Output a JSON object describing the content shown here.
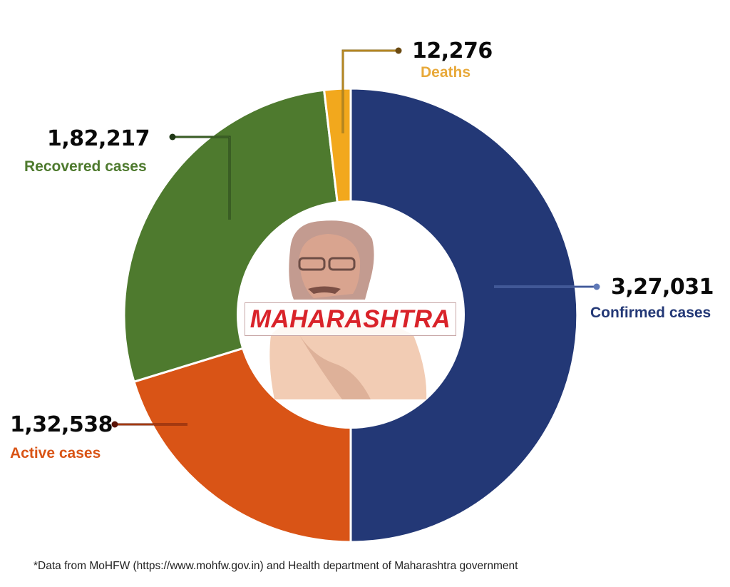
{
  "chart_data": {
    "type": "pie",
    "subtype": "donut",
    "title": "MAHARASHTRA",
    "categories": [
      "Confirmed cases",
      "Active cases",
      "Recovered cases",
      "Deaths"
    ],
    "values": [
      327031,
      132538,
      182217,
      12276
    ],
    "display_values": [
      "3,27,031",
      "1,32,538",
      "1,82,217",
      "12,276"
    ],
    "colors": [
      "#233876",
      "#d95416",
      "#4e7a2e",
      "#f2a81d"
    ],
    "label_colors": [
      "#233876",
      "#d95416",
      "#4e7a2e",
      "#e8a93a"
    ],
    "legend_position": "callouts",
    "footnote": "*Data from MoHFW (https://www.mohfw.gov.in) and Health department of Maharashtra government"
  },
  "center": {
    "title": "MAHARASHTRA",
    "image": "portrait-illustration"
  },
  "callouts": {
    "confirmed": {
      "value": "3,27,031",
      "label": "Confirmed cases"
    },
    "active": {
      "value": "1,32,538",
      "label": "Active cases"
    },
    "recovered": {
      "value": "1,82,217",
      "label": "Recovered cases"
    },
    "deaths": {
      "value": "12,276",
      "label": "Deaths"
    }
  },
  "footnote": "*Data from MoHFW (https://www.mohfw.gov.in) and Health department of Maharashtra government"
}
